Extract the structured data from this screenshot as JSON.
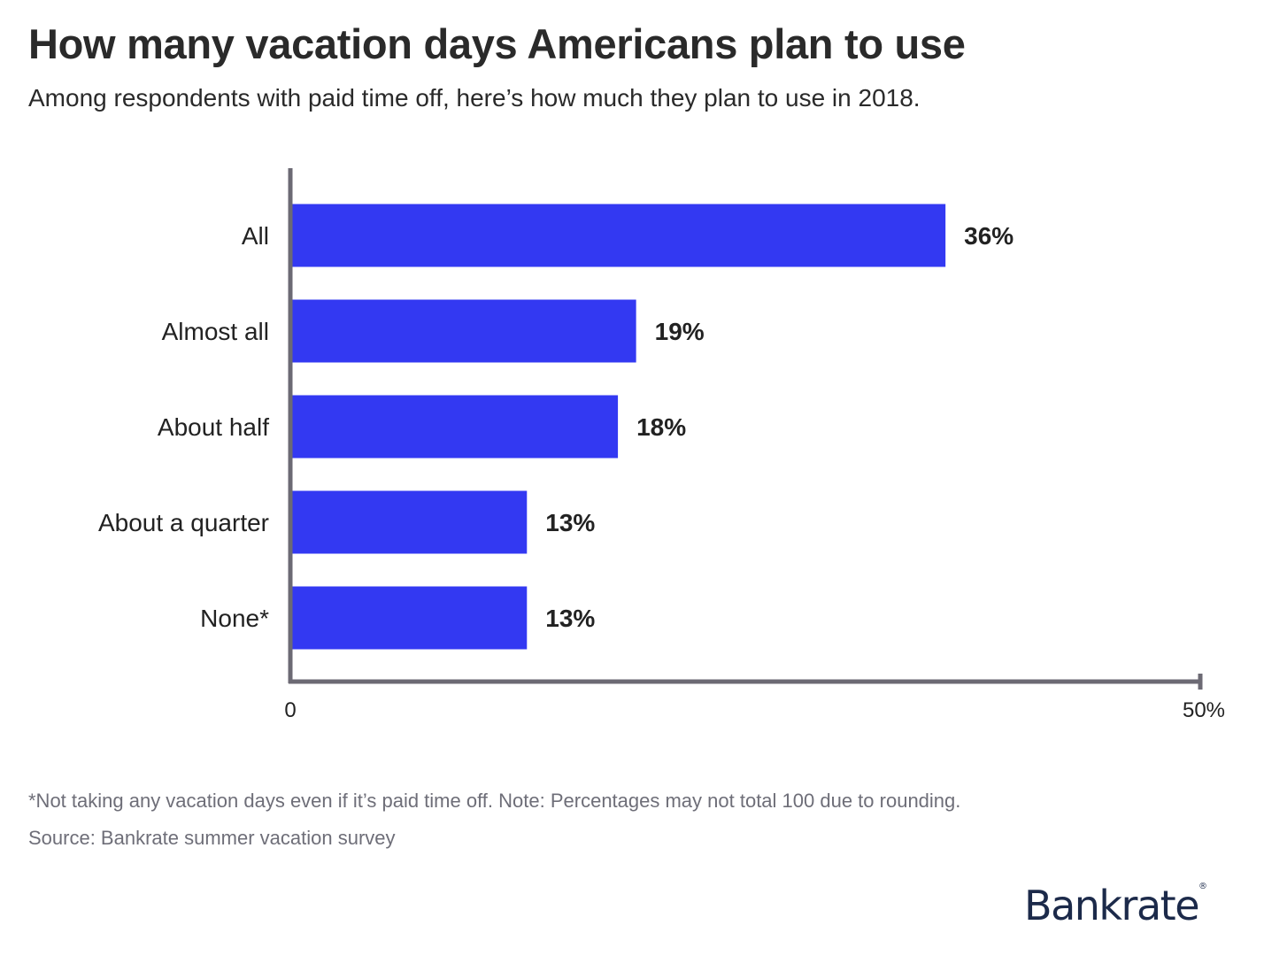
{
  "title": "How many vacation days Americans plan to use",
  "subtitle": "Among respondents with paid time off, here’s how much they plan to use in 2018.",
  "footnote": "*Not taking any vacation days even if it’s paid time off. Note: Percentages may not total 100 due to rounding.",
  "source": "Source: Bankrate summer vacation survey",
  "logo": {
    "text": "Bankrate",
    "mark": "®",
    "color": "#1c2a4a"
  },
  "colors": {
    "bar": "#3339f2",
    "axis": "#6c6a74",
    "label": "#222222"
  },
  "chart_data": {
    "type": "bar",
    "orientation": "horizontal",
    "categories": [
      "All",
      "Almost all",
      "About half",
      "About a quarter",
      "None*"
    ],
    "values": [
      36,
      19,
      18,
      13,
      13
    ],
    "value_labels": [
      "36%",
      "19%",
      "18%",
      "13%",
      "13%"
    ],
    "xlim": [
      0,
      50
    ],
    "x_tick_labels": [
      "0",
      "50%"
    ],
    "grid": false,
    "legend": "none"
  }
}
